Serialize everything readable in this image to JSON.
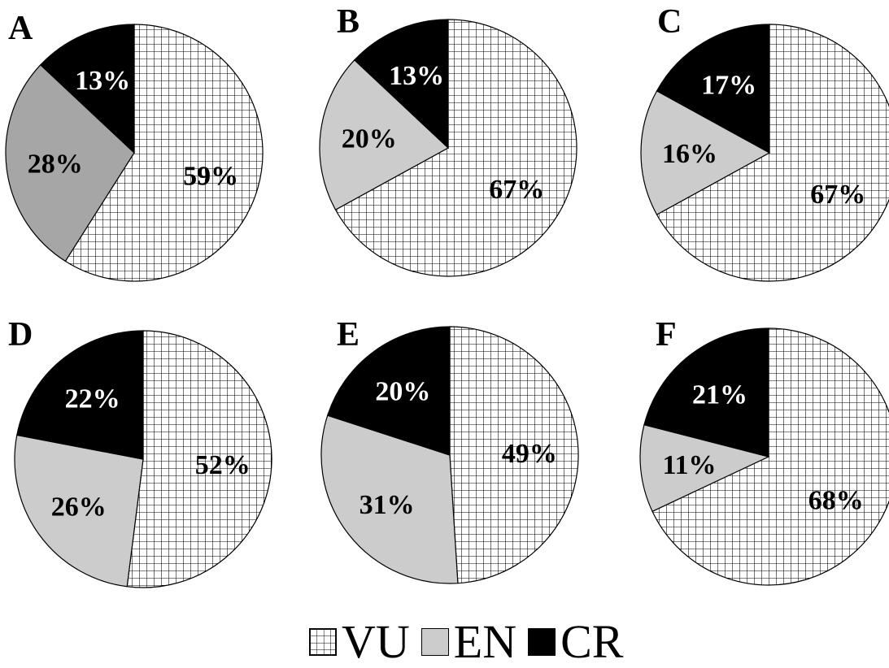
{
  "chart_data": [
    {
      "type": "pie",
      "title": "A",
      "labels": [
        "VU",
        "EN",
        "CR"
      ],
      "values": [
        59,
        28,
        13
      ],
      "value_labels": [
        "59%",
        "28%",
        "13%"
      ]
    },
    {
      "type": "pie",
      "title": "B",
      "labels": [
        "VU",
        "EN",
        "CR"
      ],
      "values": [
        67,
        20,
        13
      ],
      "value_labels": [
        "67%",
        "20%",
        "13%"
      ]
    },
    {
      "type": "pie",
      "title": "C",
      "labels": [
        "VU",
        "EN",
        "CR"
      ],
      "values": [
        67,
        16,
        17
      ],
      "value_labels": [
        "67%",
        "16%",
        "17%"
      ]
    },
    {
      "type": "pie",
      "title": "D",
      "labels": [
        "VU",
        "EN",
        "CR"
      ],
      "values": [
        52,
        26,
        22
      ],
      "value_labels": [
        "52%",
        "26%",
        "22%"
      ]
    },
    {
      "type": "pie",
      "title": "E",
      "labels": [
        "VU",
        "EN",
        "CR"
      ],
      "values": [
        49,
        31,
        20
      ],
      "value_labels": [
        "49%",
        "31%",
        "20%"
      ]
    },
    {
      "type": "pie",
      "title": "F",
      "labels": [
        "VU",
        "EN",
        "CR"
      ],
      "values": [
        68,
        11,
        21
      ],
      "value_labels": [
        "68%",
        "11%",
        "21%"
      ]
    }
  ],
  "legend": {
    "placement": "bottom-center",
    "items": [
      {
        "label": "VU",
        "fill": "grid-hatch"
      },
      {
        "label": "EN",
        "fill": "#cccccc"
      },
      {
        "label": "CR",
        "fill": "#000000"
      }
    ]
  },
  "colors": {
    "VU": "#ffffff",
    "EN": "#cccccc",
    "EN_A": "#a6a6a6",
    "CR": "#000000",
    "stroke": "#000000"
  }
}
